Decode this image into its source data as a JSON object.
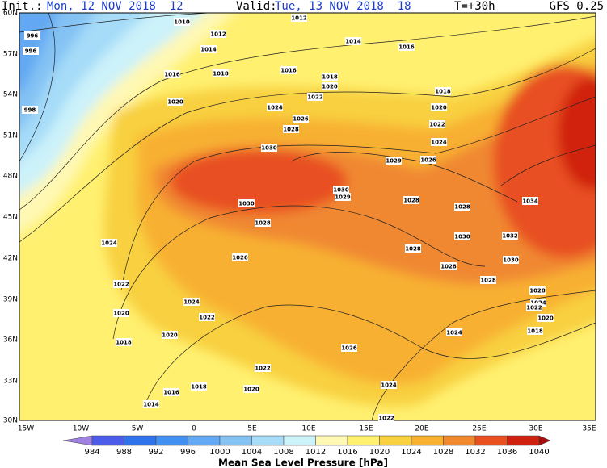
{
  "header": {
    "init_label": "Init.:",
    "init": "Mon, 12 NOV 2018  12",
    "valid_label": "Valid:",
    "valid": "Tue, 13 NOV 2018  18",
    "lead": "T=+30h",
    "model": "GFS 0.25"
  },
  "lat_labels": [
    "60N",
    "57N",
    "54N",
    "51N",
    "48N",
    "45N",
    "42N",
    "39N",
    "36N",
    "33N",
    "30N"
  ],
  "lon_labels": [
    "15W",
    "10W",
    "5W",
    "0",
    "5E",
    "10E",
    "15E",
    "20E",
    "25E",
    "30E",
    "35E"
  ],
  "isobar_labels": [
    996,
    996,
    998,
    1010,
    1012,
    1012,
    1014,
    1014,
    1016,
    1018,
    1016,
    1016,
    1018,
    1020,
    1020,
    1022,
    1024,
    1026,
    1028,
    1018,
    1020,
    1022,
    1024,
    1030,
    1029,
    1026,
    1030,
    1029,
    1030,
    1028,
    1028,
    1034,
    1028,
    1024,
    1030,
    1032,
    1026,
    1028,
    1028,
    1030,
    1022,
    1028,
    1028,
    1024,
    1022,
    1020,
    1024,
    1022,
    1020,
    1018,
    1020,
    1024,
    1018,
    1026,
    1022,
    1024,
    1018,
    1020,
    1016,
    1014,
    1022
  ],
  "colorbar": {
    "levels": [
      984,
      988,
      992,
      996,
      1000,
      1004,
      1008,
      1012,
      1016,
      1020,
      1024,
      1028,
      1032,
      1036,
      1040
    ],
    "colors": [
      "#a080e0",
      "#4a5ce8",
      "#2f72ea",
      "#4290f0",
      "#62a8f2",
      "#84c2f4",
      "#a6dcf8",
      "#ccf2fa",
      "#fff8b4",
      "#fff070",
      "#f8d040",
      "#f8b030",
      "#f08830",
      "#e85020",
      "#d02010",
      "#a80c0c"
    ],
    "title": "Mean Sea Level Pressure [hPa]"
  }
}
